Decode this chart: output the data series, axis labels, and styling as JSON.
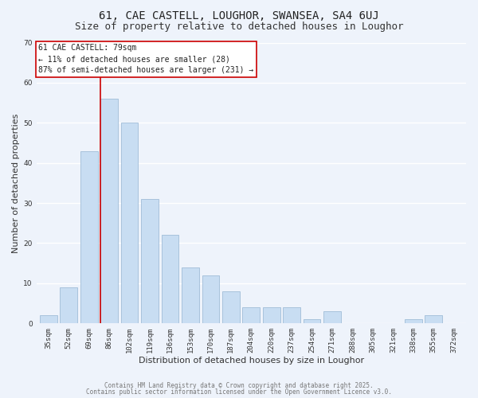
{
  "title": "61, CAE CASTELL, LOUGHOR, SWANSEA, SA4 6UJ",
  "subtitle": "Size of property relative to detached houses in Loughor",
  "xlabel": "Distribution of detached houses by size in Loughor",
  "ylabel": "Number of detached properties",
  "categories": [
    "35sqm",
    "52sqm",
    "69sqm",
    "86sqm",
    "102sqm",
    "119sqm",
    "136sqm",
    "153sqm",
    "170sqm",
    "187sqm",
    "204sqm",
    "220sqm",
    "237sqm",
    "254sqm",
    "271sqm",
    "288sqm",
    "305sqm",
    "321sqm",
    "338sqm",
    "355sqm",
    "372sqm"
  ],
  "values": [
    2,
    9,
    43,
    56,
    50,
    31,
    22,
    14,
    12,
    8,
    4,
    4,
    4,
    1,
    3,
    0,
    0,
    0,
    1,
    2,
    0
  ],
  "bar_color": "#c8ddf2",
  "bar_edge_color": "#a0bcd8",
  "vline_color": "#cc0000",
  "vline_x_index": 3,
  "ylim": [
    0,
    70
  ],
  "yticks": [
    0,
    10,
    20,
    30,
    40,
    50,
    60,
    70
  ],
  "annotation_title": "61 CAE CASTELL: 79sqm",
  "annotation_line1": "← 11% of detached houses are smaller (28)",
  "annotation_line2": "87% of semi-detached houses are larger (231) →",
  "annotation_box_color": "#ffffff",
  "annotation_box_edge": "#cc0000",
  "footer1": "Contains HM Land Registry data © Crown copyright and database right 2025.",
  "footer2": "Contains public sector information licensed under the Open Government Licence v3.0.",
  "background_color": "#eef3fb",
  "grid_color": "#ffffff",
  "title_fontsize": 10,
  "subtitle_fontsize": 9,
  "tick_fontsize": 6.5,
  "label_fontsize": 8,
  "footer_fontsize": 5.5,
  "annotation_fontsize": 7
}
